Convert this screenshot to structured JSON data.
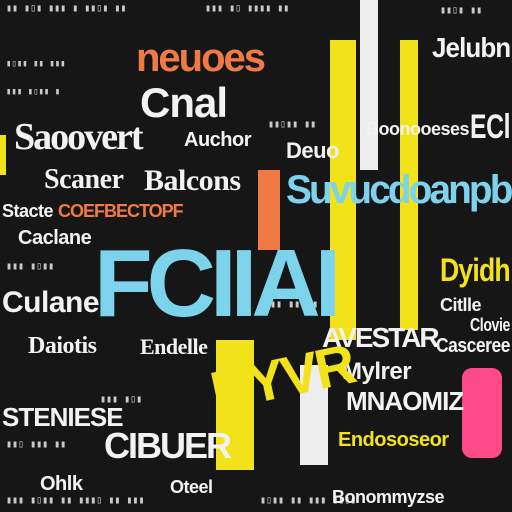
{
  "palette": {
    "background": "#161616",
    "white": "#f2f2f2",
    "orange": "#f07a45",
    "yellow": "#f2e21a",
    "cyan": "#7ed3ec",
    "pink": "#ff4a8a"
  },
  "words": {
    "nouces": "neuoes",
    "cnal": "Cnal",
    "scovert": "Saoovert",
    "auchor": "Auchor",
    "scaner": "Scaner",
    "balcons": "Balcons",
    "coefbector": "COEFBECTOPF",
    "stacte": "Stacte",
    "caclane": "Caclane",
    "culanel": "Culanel",
    "daiotis": "Daiotis",
    "endelle": "Endelle",
    "stenese": "STENIESE",
    "cibluer": "CIBUER",
    "ohlk": "Ohlk",
    "fclal": "FCIIAI",
    "suvucdoanpb": "Suvucdoanpb",
    "jelubn": "Jelubn",
    "ecl": "ECl",
    "boonessnes": "Boonooeses",
    "deuo": "Deuo",
    "dyidh": "Dyidh",
    "citlle": "Citlle",
    "clovie": "Clovie",
    "casceree": "Casceree",
    "avestar": "AVESTAR",
    "mylrer": "Mylrer",
    "mnaomiz": "MNAOMIZ",
    "endosoeor": "Endososeor",
    "bonommysse": "Bonommyzse",
    "oteel": "Oteel",
    "hyvr": "HYVR"
  }
}
